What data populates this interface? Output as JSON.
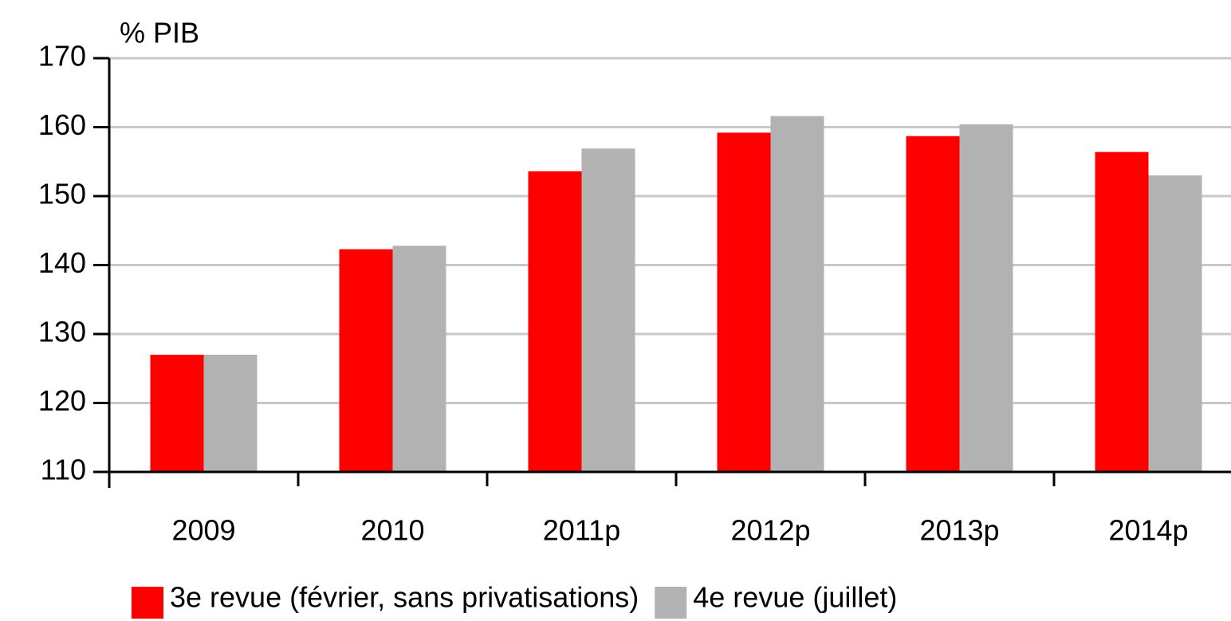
{
  "chart_data": {
    "type": "bar",
    "y_label": "% PIB",
    "categories": [
      "2009",
      "2010",
      "2011p",
      "2012p",
      "2013p",
      "2014p"
    ],
    "series": [
      {
        "name": "3e revue (février, sans privatisations)",
        "color": "#ff0000",
        "values": [
          127,
          142.3,
          153.6,
          159.2,
          158.7,
          156.4
        ]
      },
      {
        "name": "4e revue (juillet)",
        "color": "#b2b2b2",
        "values": [
          127,
          142.8,
          156.9,
          161.6,
          160.4,
          153.0
        ]
      }
    ],
    "ylim": [
      110,
      170
    ],
    "yticks": [
      110,
      120,
      130,
      140,
      150,
      160,
      170
    ],
    "grid": true,
    "legend": "bottom"
  }
}
